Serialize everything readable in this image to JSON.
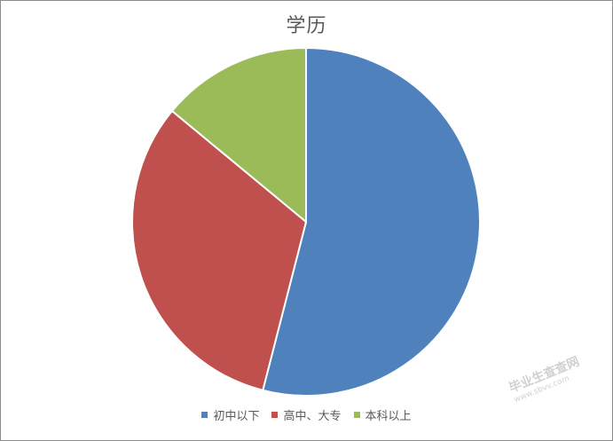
{
  "chart_data": {
    "type": "pie",
    "title": "学历",
    "categories": [
      "初中以下",
      "高中、大专",
      "本科以上"
    ],
    "values": [
      54,
      32,
      14
    ],
    "colors": [
      "#4f81bd",
      "#c0504d",
      "#9bbb59"
    ],
    "start_angle_deg": 0,
    "direction": "clockwise",
    "legend_position": "bottom"
  },
  "watermark": {
    "line1": "毕业生查查网",
    "line2": "www.sbvv.com"
  }
}
